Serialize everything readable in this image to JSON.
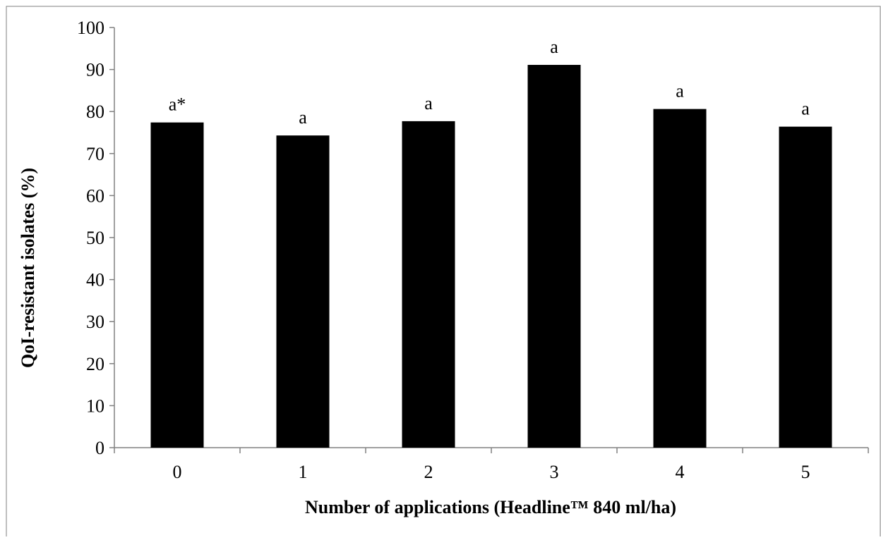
{
  "chart_data": {
    "type": "bar",
    "title": "",
    "xlabel": "Number of applications (Headline™ 840 ml/ha)",
    "ylabel": "QoI-resistant isolates (%)",
    "categories": [
      "0",
      "1",
      "2",
      "3",
      "4",
      "5"
    ],
    "values": [
      77.4,
      74.3,
      77.7,
      91.1,
      80.6,
      76.4
    ],
    "data_labels": [
      "a*",
      "a",
      "a",
      "a",
      "a",
      "a"
    ],
    "ylim": [
      0,
      100
    ],
    "ytick_step": 10,
    "grid": false,
    "legend": "none",
    "bar_color": "#000000",
    "frame_color": "#7f7f7f"
  }
}
